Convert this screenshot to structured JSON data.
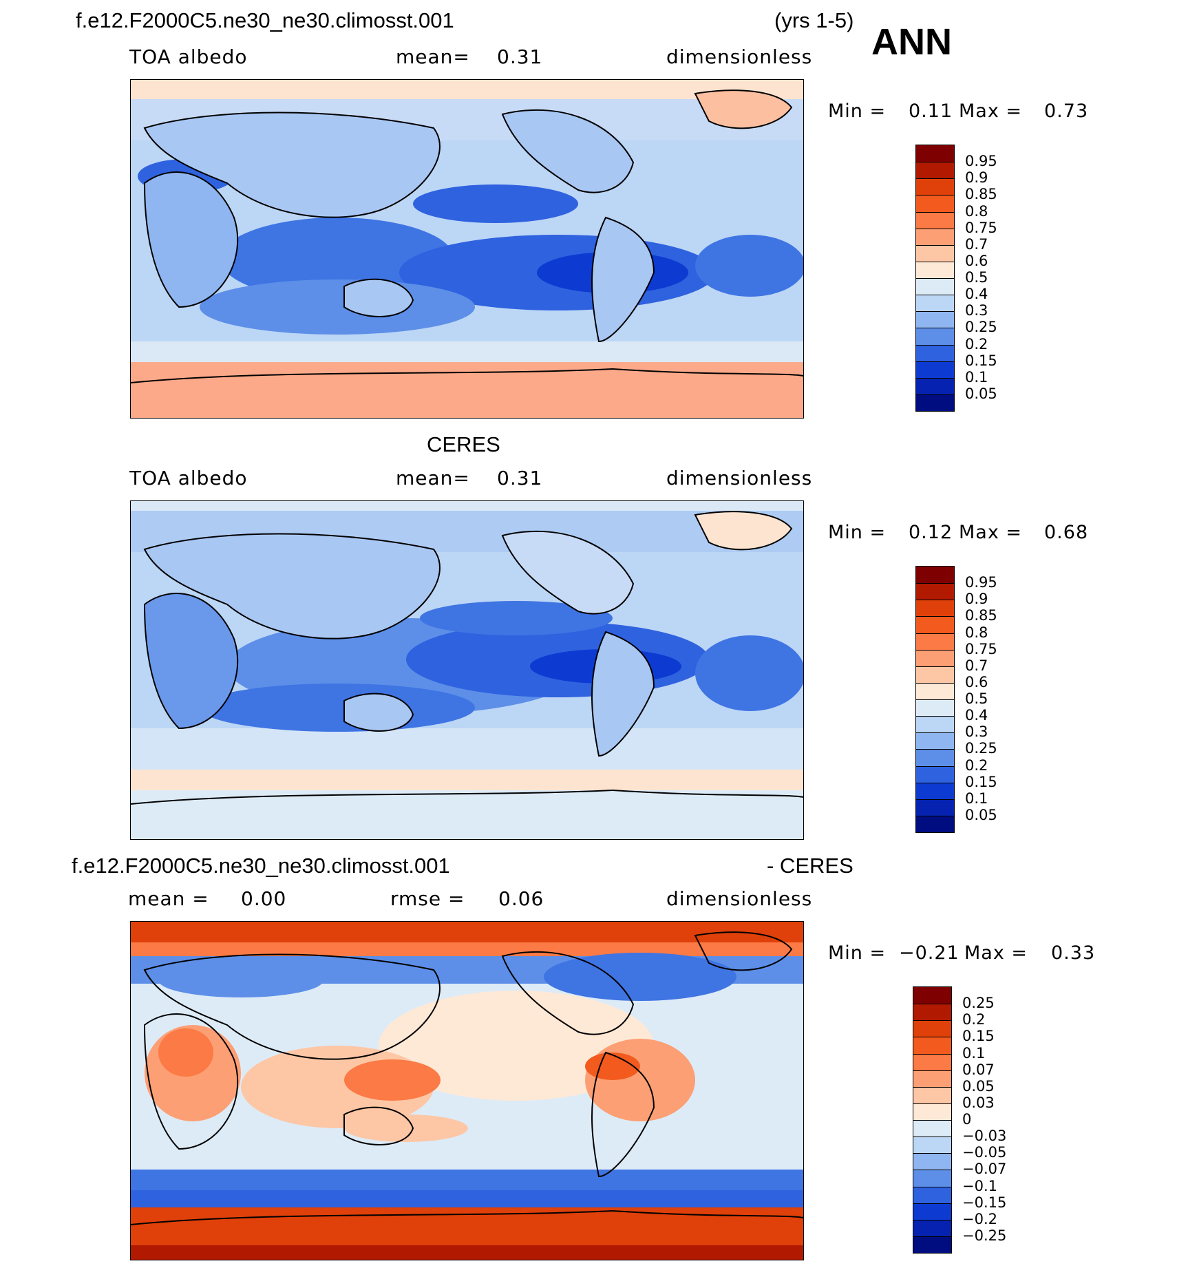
{
  "season": "ANN",
  "years": "(yrs 1-5)",
  "panels": [
    {
      "header": "f.e12.F2000C5.ne30_ne30.climosst.001",
      "left": "TOA albedo",
      "mid_label": "mean=",
      "mid_value": "0.31",
      "right": "dimensionless",
      "min_label": "Min =",
      "min_value": "0.11",
      "max_label": "Max =",
      "max_value": "0.73",
      "colorbar_ticks": [
        "0.95",
        "0.9",
        "0.85",
        "0.8",
        "0.75",
        "0.7",
        "0.6",
        "0.5",
        "0.4",
        "0.3",
        "0.25",
        "0.2",
        "0.15",
        "0.1",
        "0.05"
      ]
    },
    {
      "header": "CERES",
      "left": "TOA albedo",
      "mid_label": "mean=",
      "mid_value": "0.31",
      "right": "dimensionless",
      "min_label": "Min =",
      "min_value": "0.12",
      "max_label": "Max =",
      "max_value": "0.68",
      "colorbar_ticks": [
        "0.95",
        "0.9",
        "0.85",
        "0.8",
        "0.75",
        "0.7",
        "0.6",
        "0.5",
        "0.4",
        "0.3",
        "0.25",
        "0.2",
        "0.15",
        "0.1",
        "0.05"
      ]
    },
    {
      "header": "f.e12.F2000C5.ne30_ne30.climosst.001",
      "header_right": "- CERES",
      "left_label": "mean =",
      "left_value": "0.00",
      "mid_label": "rmse =",
      "mid_value": "0.06",
      "right": "dimensionless",
      "min_label": "Min =",
      "min_value": "−0.21",
      "max_label": "Max =",
      "max_value": "0.33",
      "colorbar_ticks": [
        "0.25",
        "0.2",
        "0.15",
        "0.1",
        "0.07",
        "0.05",
        "0.03",
        "0",
        "−0.03",
        "−0.05",
        "−0.07",
        "−0.1",
        "−0.15",
        "−0.2",
        "−0.25"
      ]
    }
  ],
  "colorbar_colors": [
    "#7f0000",
    "#b11a00",
    "#e0400a",
    "#f25a1e",
    "#fb7a45",
    "#fc9f74",
    "#fdc7a6",
    "#fee8d6",
    "#ddebf7",
    "#bcd6f5",
    "#8fb6f0",
    "#5d8fe8",
    "#2f62df",
    "#0d3bd2",
    "#0523b0",
    "#000d80"
  ]
}
